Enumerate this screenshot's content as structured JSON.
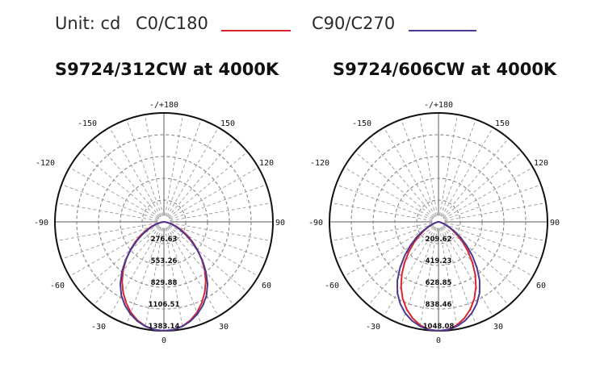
{
  "legend": {
    "unit": "Unit: cd",
    "series": [
      {
        "name": "C0/C180",
        "color": "#d9262c"
      },
      {
        "name": "C90/C270",
        "color": "#4b3a93"
      }
    ]
  },
  "chart_data": [
    {
      "type": "polar",
      "title": "S9724/312CW at 4000K",
      "unit": "cd",
      "angle_ticks": [
        "-/+180",
        "-150",
        "150",
        "-120",
        "120",
        "-90",
        "90",
        "-60",
        "60",
        "-30",
        "30",
        "0"
      ],
      "radial_ticks": [
        276.63,
        553.26,
        829.88,
        1106.51,
        1383.14
      ],
      "radial_labels": [
        "276.63",
        "553.26",
        "829.88",
        "1106.51",
        "1383.14"
      ],
      "rmax": 1383.14,
      "grid": true,
      "series": [
        {
          "name": "C0/C180",
          "color": "#d9262c",
          "angles": [
            0,
            5,
            10,
            15,
            20,
            25,
            30,
            35,
            40,
            45,
            50,
            55,
            60,
            65,
            70,
            75,
            80,
            85,
            90
          ],
          "values": [
            1383.14,
            1375,
            1345,
            1295,
            1225,
            1135,
            1035,
            925,
            805,
            680,
            560,
            445,
            340,
            245,
            165,
            95,
            45,
            15,
            0
          ]
        },
        {
          "name": "C90/C270",
          "color": "#4b3a93",
          "angles": [
            0,
            5,
            10,
            15,
            20,
            25,
            30,
            35,
            40,
            45,
            50,
            55,
            60,
            65,
            70,
            75,
            80,
            85,
            90
          ],
          "values": [
            1383.14,
            1375,
            1348,
            1305,
            1245,
            1170,
            1080,
            965,
            830,
            690,
            550,
            420,
            310,
            215,
            140,
            80,
            38,
            12,
            0
          ]
        }
      ]
    },
    {
      "type": "polar",
      "title": "S9724/606CW at 4000K",
      "unit": "cd",
      "angle_ticks": [
        "-/+180",
        "-150",
        "150",
        "-120",
        "120",
        "-90",
        "90",
        "-60",
        "60",
        "-30",
        "30",
        "0"
      ],
      "radial_ticks": [
        209.62,
        419.23,
        628.85,
        838.46,
        1048.08
      ],
      "radial_labels": [
        "209.62",
        "419.23",
        "628.85",
        "838.46",
        "1048.08"
      ],
      "rmax": 1048.08,
      "grid": true,
      "series": [
        {
          "name": "C0/C180",
          "color": "#d9262c",
          "angles": [
            0,
            5,
            10,
            15,
            20,
            25,
            30,
            35,
            40,
            45,
            50,
            55,
            60,
            65,
            70,
            75,
            80,
            85,
            90
          ],
          "values": [
            1048.08,
            1040,
            1010,
            960,
            895,
            815,
            720,
            615,
            505,
            400,
            305,
            220,
            150,
            95,
            55,
            25,
            10,
            3,
            0
          ]
        },
        {
          "name": "C90/C270",
          "color": "#4b3a93",
          "angles": [
            0,
            5,
            10,
            15,
            20,
            25,
            30,
            35,
            40,
            45,
            50,
            55,
            60,
            65,
            70,
            75,
            80,
            85,
            90
          ],
          "values": [
            1048.08,
            1042,
            1020,
            985,
            935,
            870,
            790,
            690,
            575,
            460,
            350,
            255,
            170,
            105,
            60,
            28,
            11,
            3,
            0
          ]
        }
      ]
    }
  ]
}
